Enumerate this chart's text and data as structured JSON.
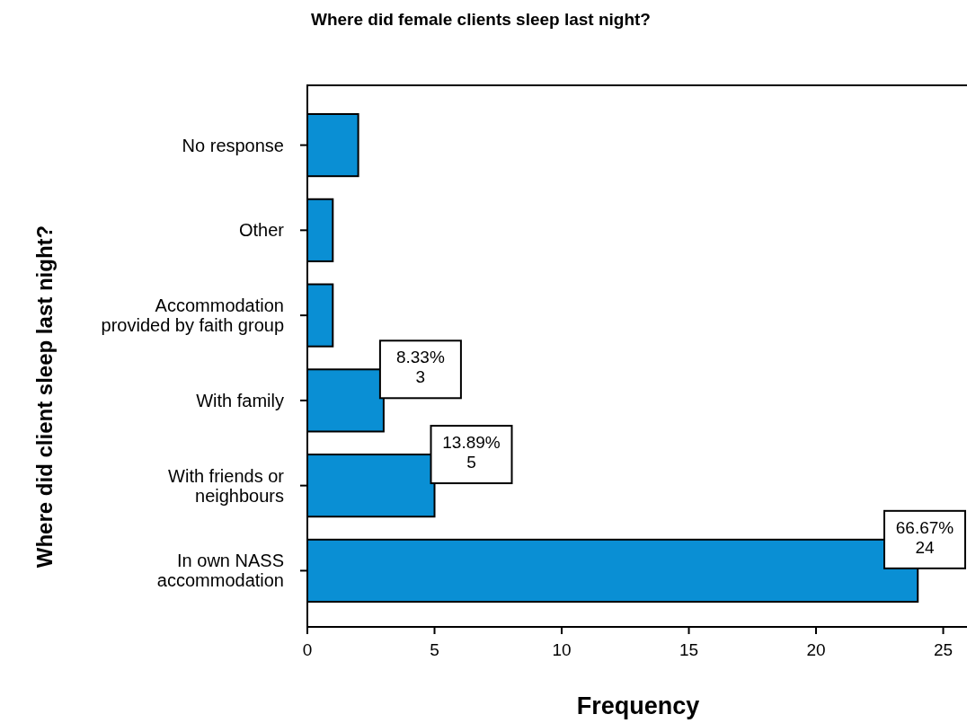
{
  "chart_data": {
    "type": "bar",
    "orientation": "horizontal",
    "title": "Where did female clients sleep last night?",
    "xlabel": "Frequency",
    "ylabel": "Where did client sleep last night?",
    "categories": [
      "No response",
      "Other",
      "Accommodation\nprovided by faith group",
      "With family",
      "With friends or\nneighbours",
      "In own NASS\naccommodation"
    ],
    "values": [
      2,
      1,
      1,
      3,
      5,
      24
    ],
    "value_labels": [
      null,
      null,
      null,
      "8.33%\n3",
      "13.89%\n5",
      "66.67%\n24"
    ],
    "color": "#0a8fd4",
    "xlim": [
      0,
      25.9
    ],
    "xticks": [
      0,
      5,
      10,
      15,
      20,
      25
    ],
    "grid": false
  }
}
